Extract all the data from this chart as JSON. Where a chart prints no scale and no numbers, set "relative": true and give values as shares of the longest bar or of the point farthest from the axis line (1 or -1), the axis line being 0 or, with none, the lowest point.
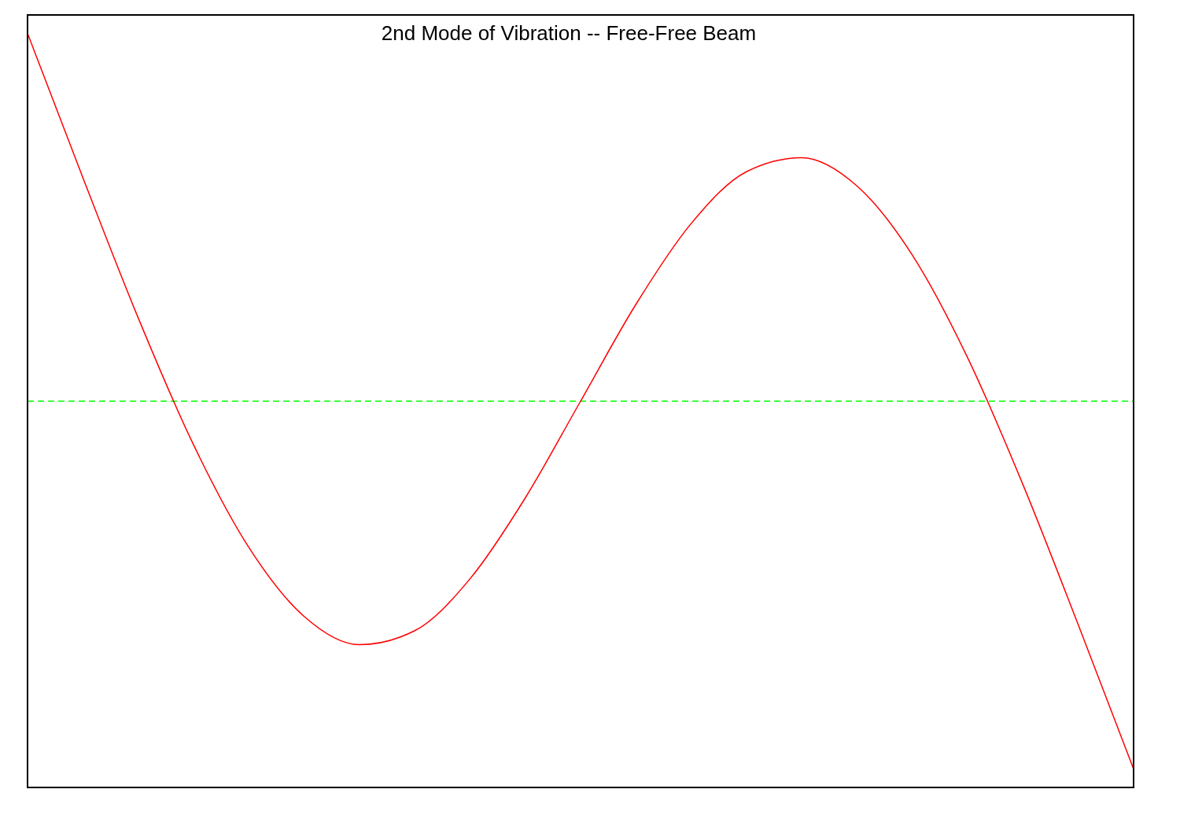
{
  "chart_data": {
    "type": "line",
    "title": "2nd Mode of Vibration -- Free-Free Beam",
    "relative": true,
    "marker": "none",
    "line_style": "solid",
    "grid": false,
    "legend": false,
    "categories": [
      null,
      null,
      null,
      null,
      null,
      null,
      null,
      null,
      null,
      null,
      null,
      null,
      null,
      null,
      null,
      null,
      null,
      null,
      null,
      null,
      null
    ],
    "series": [
      {
        "color": "#ff0000",
        "values": [
          1,
          0.608,
          0.227,
          -0.118,
          -0.397,
          -0.585,
          -0.662,
          -0.624,
          -0.483,
          -0.263,
          0,
          0.263,
          0.483,
          0.624,
          0.662,
          0.585,
          0.397,
          0.118,
          -0.227,
          -0.608,
          -1
        ]
      }
    ],
    "ref_lines": [
      {
        "axis": "y",
        "value": 0,
        "color": "#00ff00",
        "line_style": "dashed"
      }
    ]
  }
}
